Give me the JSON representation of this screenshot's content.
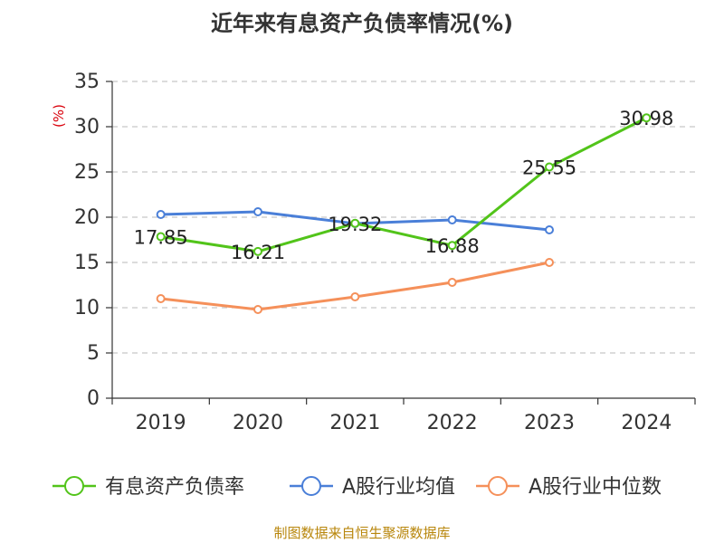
{
  "chart_data": {
    "type": "line",
    "title": "近年来有息资产负债率情况(%)",
    "ylabel": "(%)",
    "xlabel": "",
    "categories": [
      "2019",
      "2020",
      "2021",
      "2022",
      "2023",
      "2024"
    ],
    "ylim": [
      0,
      35
    ],
    "yticks": [
      0,
      5,
      10,
      15,
      20,
      25,
      30,
      35
    ],
    "grid": "horizontal dashed",
    "legend_position": "bottom",
    "series": [
      {
        "name": "有息资产负债率",
        "color": "#52c41a",
        "values": [
          17.85,
          16.21,
          19.32,
          16.88,
          25.55,
          30.98
        ],
        "data_labels": [
          "17.85",
          "16.21",
          "19.32",
          "16.88",
          "25.55",
          "30.98"
        ]
      },
      {
        "name": "A股行业均值",
        "color": "#4a7fd8",
        "values": [
          20.3,
          20.6,
          19.3,
          19.7,
          18.6,
          null
        ]
      },
      {
        "name": "A股行业中位数",
        "color": "#f5905a",
        "values": [
          11.0,
          9.8,
          11.2,
          12.8,
          15.0,
          null
        ]
      }
    ],
    "source": "制图数据来自恒生聚源数据库"
  }
}
